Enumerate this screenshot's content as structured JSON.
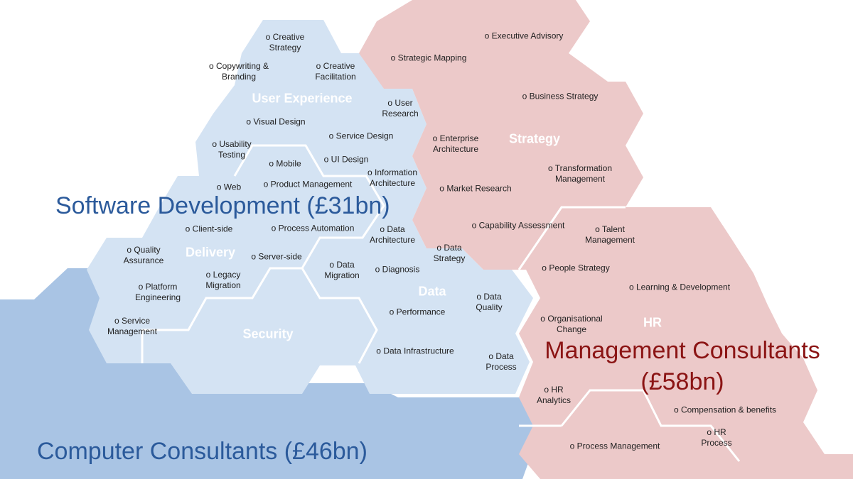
{
  "markets": [
    "Software Development (£31bn)",
    "Computer Consultants (£46bn)",
    "Management Consultants (£58bn)"
  ],
  "clusters": [
    {
      "title": "User Experience",
      "items": [
        "Creative Strategy",
        "Copywriting & Branding",
        "Creative Facilitation",
        "User Research",
        "Visual Design",
        "Service Design",
        "Usability Testing",
        "UI Design",
        "Mobile"
      ]
    },
    {
      "title": "Delivery",
      "items": [
        "Product Management",
        "Web",
        "Information Architecture",
        "Client-side",
        "Process Automation",
        "Quality Assurance",
        "Server-side",
        "Legacy Migration",
        "Platform Engineering",
        "Service Management"
      ]
    },
    {
      "title": "Data",
      "items": [
        "Data Architecture",
        "Data Strategy",
        "Data Migration",
        "Diagnosis",
        "Data Quality",
        "Performance",
        "Data Infrastructure",
        "Data Process"
      ]
    },
    {
      "title": "Security",
      "items": []
    },
    {
      "title": "Strategy",
      "items": [
        "Executive Advisory",
        "Strategic Mapping",
        "Business Strategy",
        "Enterprise Architecture",
        "Transformation Management",
        "Market Research",
        "Capability Assessment"
      ]
    },
    {
      "title": "HR",
      "items": [
        "Talent Management",
        "People Strategy",
        "Learning & Development",
        "Organisational Change",
        "HR Analytics",
        "Compensation & benefits",
        "HR Process",
        "Process Management"
      ]
    }
  ]
}
